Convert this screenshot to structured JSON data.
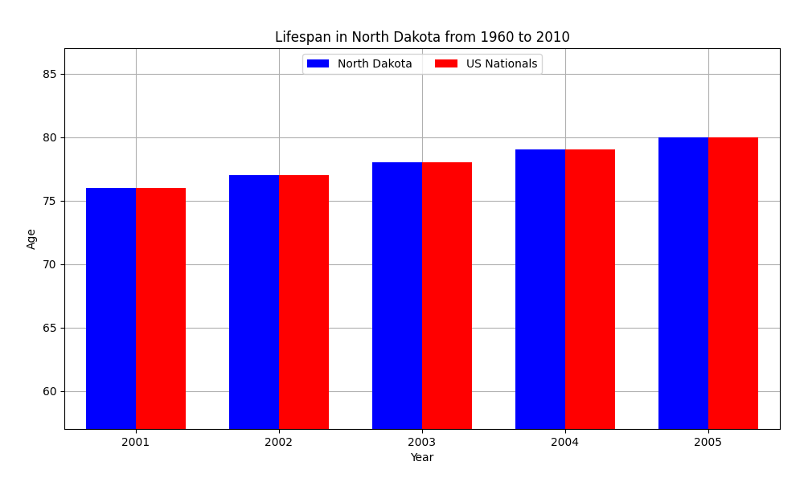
{
  "chart_data": {
    "type": "bar",
    "title": "Lifespan in North Dakota from 1960 to 2010",
    "x_label": "Year",
    "y_label": "Age",
    "categories": [
      "2001",
      "2002",
      "2003",
      "2004",
      "2005"
    ],
    "series": [
      {
        "name": "North Dakota",
        "color": "#0000ff",
        "values": [
          76,
          77,
          78,
          79,
          80
        ]
      },
      {
        "name": "US Nationals",
        "color": "#ff0000",
        "values": [
          76,
          77,
          78,
          79,
          80
        ]
      }
    ],
    "ylim": [
      57,
      87
    ],
    "yticks": [
      60,
      65,
      70,
      75,
      80,
      85
    ],
    "grid": true,
    "legend": "upper center"
  }
}
